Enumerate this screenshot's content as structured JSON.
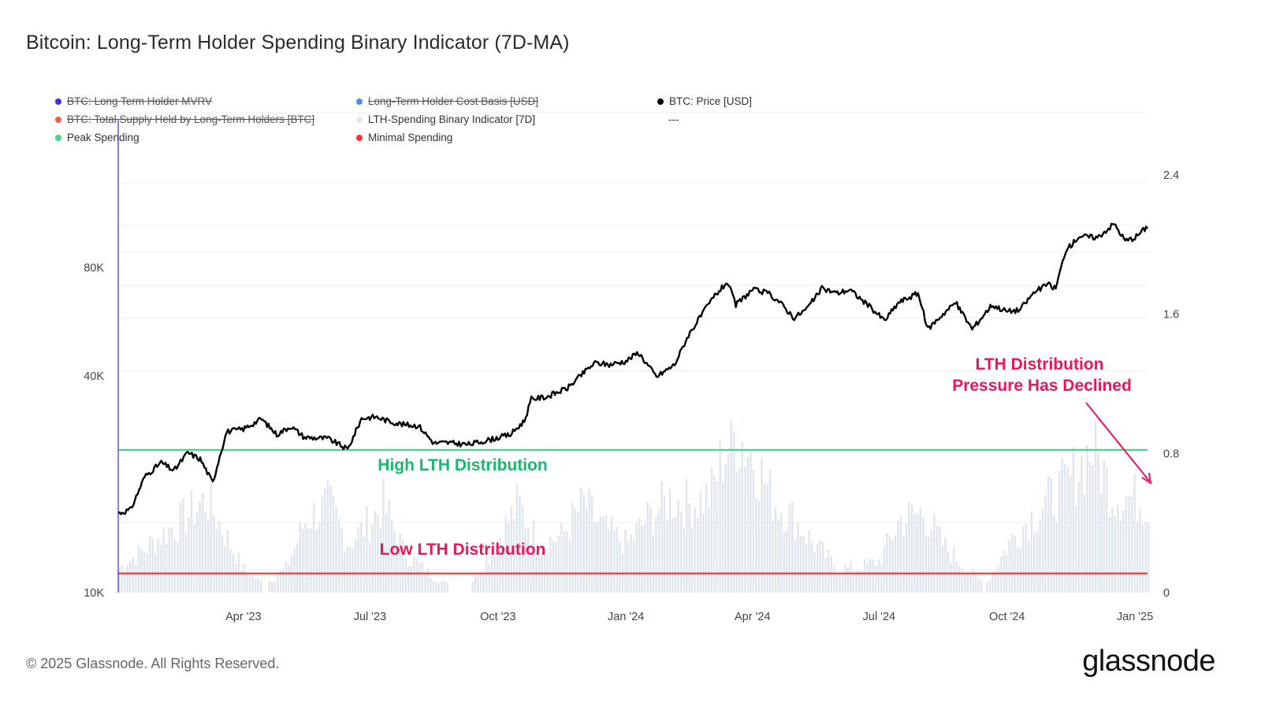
{
  "title": "Bitcoin: Long-Term Holder Spending Binary Indicator (7D-MA)",
  "legend": [
    {
      "label": "BTC: Long Term Holder MVRV",
      "color": "#3b2fe0",
      "active": false
    },
    {
      "label": "Long-Term Holder Cost Basis [USD]",
      "color": "#4a8fe6",
      "active": false
    },
    {
      "label": "BTC: Price [USD]",
      "color": "#000000",
      "active": true
    },
    {
      "label": "BTC: Total Supply Held by Long-Term Holders [BTC]",
      "color": "#e8634f",
      "active": false
    },
    {
      "label": "LTH-Spending Binary Indicator [7D]",
      "color": "#dfe6ee",
      "active": true
    },
    {
      "label": "---",
      "color": "",
      "active": true
    },
    {
      "label": "Peak Spending",
      "color": "#3fd88a",
      "active": true
    },
    {
      "label": "Minimal Spending",
      "color": "#f2332e",
      "active": true
    }
  ],
  "annotations": {
    "high": "High LTH Distribution",
    "low": "Low LTH Distribution",
    "declined_line1": "LTH Distribution",
    "declined_line2": "Pressure Has Declined"
  },
  "colors": {
    "price": "#000000",
    "bars": "#dfe6ee",
    "peak_line": "#3fd88a",
    "min_line": "#f2332e",
    "high_text": "#1ab86c",
    "low_text": "#f0155a",
    "annotation": "#f0155a",
    "grid": "#ececec",
    "left_axis_line": "#3b2fe0"
  },
  "footer": "© 2025 Glassnode. All Rights Reserved.",
  "logo": "glassnode",
  "chart_data": {
    "type": "line",
    "x_range": [
      "2023-01-01",
      "2025-01-10"
    ],
    "x_ticks": [
      "Apr '23",
      "Jul '23",
      "Oct '23",
      "Jan '24",
      "Apr '24",
      "Jul '24",
      "Oct '24",
      "Jan '25"
    ],
    "x_tick_dates": [
      "2023-04-01",
      "2023-07-01",
      "2023-10-01",
      "2024-01-01",
      "2024-04-01",
      "2024-07-01",
      "2024-10-01",
      "2025-01-01"
    ],
    "y_left": {
      "scale": "log",
      "range": [
        10000,
        107000
      ],
      "ticks": [
        "10K",
        "40K",
        "80K"
      ],
      "tick_values": [
        10000,
        40000,
        80000
      ]
    },
    "y_right": {
      "scale": "linear",
      "range": [
        0,
        2.4
      ],
      "ticks": [
        "0",
        "0.8",
        "1.6",
        "2.4"
      ],
      "tick_values": [
        0,
        0.8,
        1.6,
        2.4
      ]
    },
    "peak_spending_level": 0.82,
    "minimal_spending_level": 0.11,
    "series": [
      {
        "name": "BTC: Price [USD]",
        "axis": "left",
        "x": [
          "2023-01-01",
          "2023-01-10",
          "2023-01-20",
          "2023-02-01",
          "2023-02-10",
          "2023-02-20",
          "2023-03-01",
          "2023-03-10",
          "2023-03-15",
          "2023-03-20",
          "2023-04-01",
          "2023-04-14",
          "2023-04-25",
          "2023-05-05",
          "2023-05-15",
          "2023-06-01",
          "2023-06-15",
          "2023-06-25",
          "2023-07-05",
          "2023-07-14",
          "2023-07-25",
          "2023-08-05",
          "2023-08-16",
          "2023-08-25",
          "2023-09-10",
          "2023-09-25",
          "2023-10-10",
          "2023-10-20",
          "2023-10-25",
          "2023-11-05",
          "2023-11-20",
          "2023-12-05",
          "2023-12-10",
          "2023-12-20",
          "2024-01-01",
          "2024-01-10",
          "2024-01-23",
          "2024-02-05",
          "2024-02-15",
          "2024-02-28",
          "2024-03-05",
          "2024-03-14",
          "2024-03-20",
          "2024-04-01",
          "2024-04-12",
          "2024-04-20",
          "2024-05-01",
          "2024-05-10",
          "2024-05-21",
          "2024-06-01",
          "2024-06-10",
          "2024-06-25",
          "2024-07-05",
          "2024-07-15",
          "2024-07-29",
          "2024-08-05",
          "2024-08-15",
          "2024-08-25",
          "2024-09-06",
          "2024-09-20",
          "2024-10-01",
          "2024-10-10",
          "2024-10-20",
          "2024-10-30",
          "2024-11-05",
          "2024-11-12",
          "2024-11-22",
          "2024-12-05",
          "2024-12-17",
          "2024-12-25",
          "2025-01-01",
          "2025-01-06",
          "2025-01-10"
        ],
        "values": [
          16600,
          17000,
          21000,
          23000,
          21800,
          24500,
          23500,
          20200,
          24000,
          28000,
          28500,
          30400,
          27500,
          29000,
          27000,
          26800,
          25000,
          30500,
          30800,
          30000,
          29300,
          29100,
          26000,
          26100,
          25800,
          26600,
          27500,
          30000,
          34500,
          35000,
          37000,
          42000,
          43500,
          43000,
          44000,
          46500,
          39800,
          43000,
          52000,
          62000,
          67000,
          73000,
          63000,
          69500,
          68000,
          64500,
          58000,
          61500,
          70000,
          68000,
          69500,
          62000,
          57000,
          64000,
          68000,
          54000,
          59000,
          64000,
          54000,
          63000,
          60500,
          61000,
          68000,
          72000,
          70000,
          89000,
          98000,
          97000,
          106000,
          95000,
          97000,
          101000,
          104000
        ]
      },
      {
        "name": "LTH-Spending Binary Indicator [7D]",
        "axis": "right",
        "x": [
          "2023-01-01",
          "2023-02-15",
          "2023-03-05",
          "2023-03-31",
          "2023-04-15",
          "2023-05-01",
          "2023-05-15",
          "2023-06-01",
          "2023-06-15",
          "2023-07-01",
          "2023-07-10",
          "2023-07-25",
          "2023-08-15",
          "2023-08-25",
          "2023-09-10",
          "2023-09-25",
          "2023-10-05",
          "2023-10-15",
          "2023-10-30",
          "2023-11-15",
          "2023-12-01",
          "2023-12-15",
          "2024-01-01",
          "2024-01-15",
          "2024-02-01",
          "2024-02-15",
          "2024-03-01",
          "2024-03-10",
          "2024-03-20",
          "2024-04-01",
          "2024-04-15",
          "2024-05-01",
          "2024-05-15",
          "2024-06-01",
          "2024-06-15",
          "2024-07-01",
          "2024-07-15",
          "2024-08-01",
          "2024-08-15",
          "2024-09-01",
          "2024-09-15",
          "2024-10-01",
          "2024-10-15",
          "2024-11-01",
          "2024-11-15",
          "2024-12-01",
          "2024-12-15",
          "2025-01-01",
          "2025-01-10"
        ],
        "values": [
          0.15,
          0.45,
          0.58,
          0.15,
          0.05,
          0.15,
          0.45,
          0.55,
          0.3,
          0.45,
          0.55,
          0.25,
          0.1,
          0.05,
          0.05,
          0.25,
          0.4,
          0.55,
          0.3,
          0.35,
          0.55,
          0.4,
          0.3,
          0.45,
          0.58,
          0.55,
          0.6,
          0.85,
          0.99,
          0.85,
          0.58,
          0.45,
          0.3,
          0.15,
          0.15,
          0.2,
          0.45,
          0.5,
          0.3,
          0.15,
          0.05,
          0.3,
          0.45,
          0.58,
          0.7,
          0.9,
          0.62,
          0.58,
          0.55
        ]
      }
    ]
  }
}
